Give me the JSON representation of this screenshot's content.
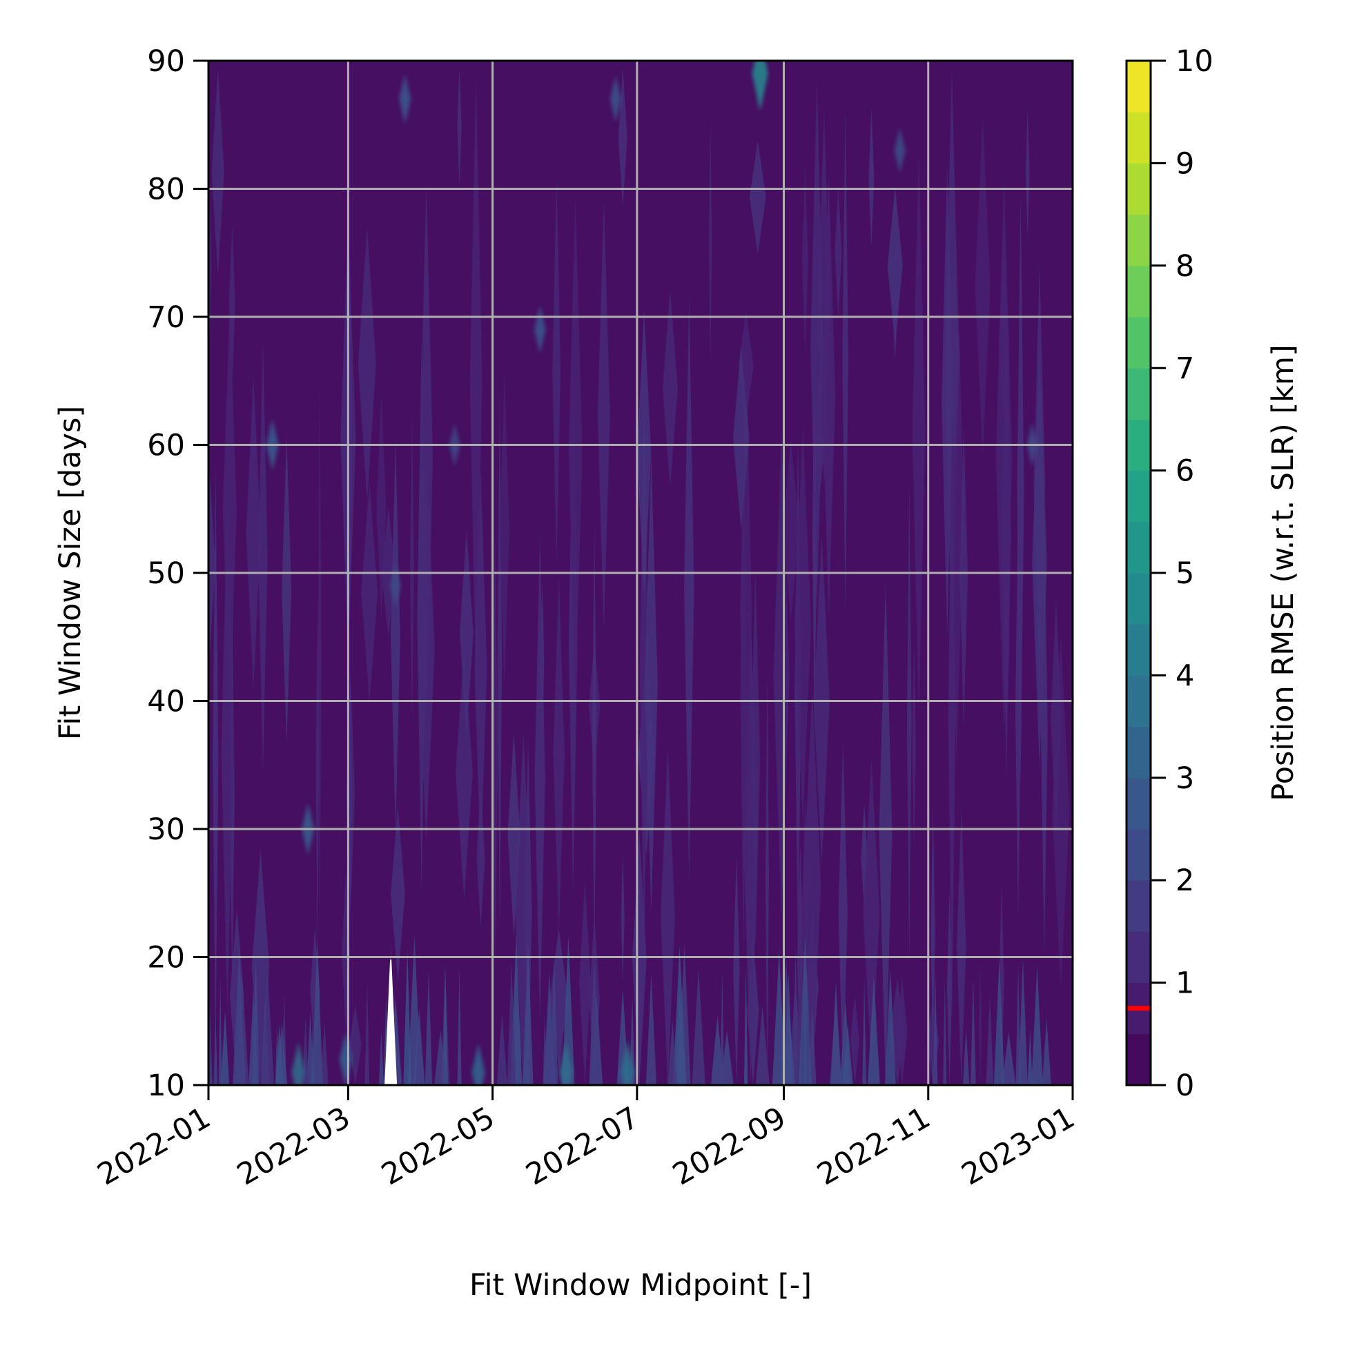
{
  "chart_data": {
    "type": "heatmap",
    "plot_kind": "filled contour",
    "xlabel": "Fit Window Midpoint [-]",
    "ylabel": "Fit Window Size [days]",
    "x_range": [
      "2022-01-01",
      "2023-01-01"
    ],
    "y_range": [
      10,
      90
    ],
    "x_ticks": [
      "2022-01",
      "2022-03",
      "2022-05",
      "2022-07",
      "2022-09",
      "2022-11",
      "2023-01"
    ],
    "x_tick_dates": [
      "2022-01-01",
      "2022-03-01",
      "2022-05-01",
      "2022-07-01",
      "2022-09-01",
      "2022-11-01",
      "2023-01-01"
    ],
    "y_ticks": [
      10,
      20,
      30,
      40,
      50,
      60,
      70,
      80,
      90
    ],
    "grid": true,
    "colorbar": {
      "label": "Position RMSE (w.r.t. SLR) [km]",
      "range": [
        0,
        10
      ],
      "ticks": [
        0,
        1,
        2,
        3,
        4,
        5,
        6,
        7,
        8,
        9,
        10
      ],
      "colormap": "viridis",
      "marker_value": 0.75,
      "marker_color": "#ff0000"
    },
    "field": {
      "base_rmse_km": 0.8,
      "dominant_band_rmse_km": [
        0.5,
        1.5
      ],
      "peaks": [
        {
          "x": "2022-08-22",
          "y": 89,
          "rmse": 4.5
        },
        {
          "x": "2022-01-28",
          "y": 60,
          "rmse": 2.8
        },
        {
          "x": "2022-02-12",
          "y": 30,
          "rmse": 2.8
        },
        {
          "x": "2022-03-25",
          "y": 87,
          "rmse": 2.6
        },
        {
          "x": "2022-05-21",
          "y": 69,
          "rmse": 2.5
        },
        {
          "x": "2022-06-22",
          "y": 87,
          "rmse": 2.4
        },
        {
          "x": "2022-10-20",
          "y": 83,
          "rmse": 2.3
        },
        {
          "x": "2022-12-15",
          "y": 60,
          "rmse": 2.2
        },
        {
          "x": "2022-03-21",
          "y": 49,
          "rmse": 2.2
        },
        {
          "x": "2022-04-15",
          "y": 60,
          "rmse": 2.1
        },
        {
          "x": "2022-02-08",
          "y": 11,
          "rmse": 3.4
        },
        {
          "x": "2022-04-25",
          "y": 11,
          "rmse": 3.2
        },
        {
          "x": "2022-06-01",
          "y": 11,
          "rmse": 3.5
        },
        {
          "x": "2022-06-27",
          "y": 11,
          "rmse": 3.6
        },
        {
          "x": "2022-02-28",
          "y": 12,
          "rmse": 3.0
        }
      ],
      "missing_region": {
        "x_center": "2022-03-19",
        "y_top": 19.8,
        "y_bottom": 10
      }
    }
  }
}
